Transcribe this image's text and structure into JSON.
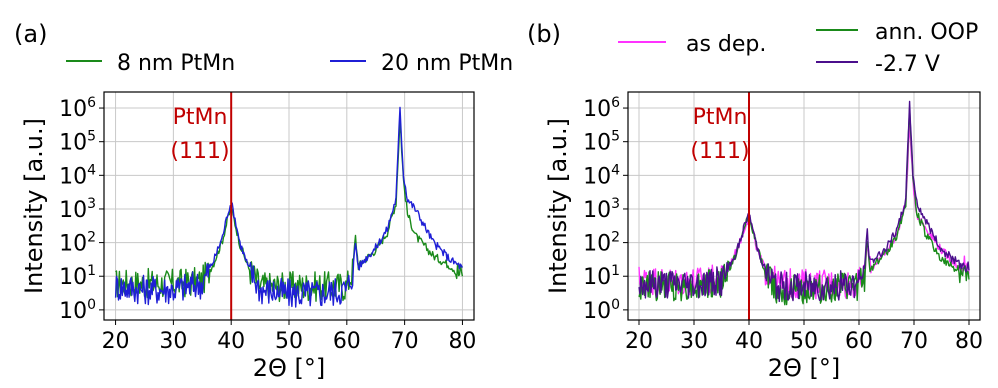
{
  "chart_data": [
    {
      "panel_label": "(a)",
      "type": "line",
      "xlabel": "2Θ [°]",
      "ylabel": "Intensity [a.u.]",
      "xlim": [
        18,
        82
      ],
      "ylim": [
        0.5,
        3000000
      ],
      "y_scale": "log",
      "grid": true,
      "legend": "top, above plot",
      "x_ticks": [
        "20",
        "30",
        "40",
        "50",
        "60",
        "70",
        "80"
      ],
      "y_ticks": [
        {
          "base": "10",
          "exp": "0",
          "value": 1
        },
        {
          "base": "10",
          "exp": "1",
          "value": 10
        },
        {
          "base": "10",
          "exp": "2",
          "value": 100
        },
        {
          "base": "10",
          "exp": "3",
          "value": 1000
        },
        {
          "base": "10",
          "exp": "4",
          "value": 10000
        },
        {
          "base": "10",
          "exp": "5",
          "value": 100000
        },
        {
          "base": "10",
          "exp": "6",
          "value": 1000000
        }
      ],
      "annotation": {
        "line1": "PtMn",
        "line2": "(111)",
        "x": 40,
        "color": "#c00000"
      },
      "series": [
        {
          "name": "8 nm PtMn",
          "color": "#1a8a1a",
          "x": [
            20,
            25,
            30,
            35,
            37,
            38.5,
            39.5,
            40,
            40.5,
            41.5,
            43,
            45,
            50,
            55,
            60,
            61,
            61.5,
            62,
            63,
            65,
            67,
            68.5,
            69.2,
            69.8,
            70.5,
            72,
            75,
            78,
            80
          ],
          "y": [
            6,
            6,
            6,
            7,
            25,
            120,
            600,
            1000,
            500,
            90,
            18,
            5,
            5,
            5,
            5,
            15,
            150,
            20,
            30,
            60,
            200,
            1500,
            500000,
            7000,
            700,
            150,
            40,
            20,
            10
          ]
        },
        {
          "name": "20 nm PtMn",
          "color": "#1f1fd6",
          "x": [
            20,
            25,
            30,
            35,
            37,
            38.5,
            39.5,
            40,
            40.5,
            41.5,
            43,
            45,
            50,
            55,
            60,
            61,
            61.5,
            62,
            63,
            65,
            67,
            68.5,
            69.2,
            69.8,
            70.5,
            72,
            75,
            78,
            80
          ],
          "y": [
            5,
            4,
            4,
            6,
            30,
            150,
            900,
            1500,
            700,
            100,
            18,
            4,
            3,
            3,
            4,
            12,
            100,
            18,
            30,
            70,
            250,
            2000,
            1000000,
            10000,
            2000,
            900,
            100,
            30,
            18
          ]
        }
      ]
    },
    {
      "panel_label": "(b)",
      "type": "line",
      "xlabel": "2Θ [°]",
      "ylabel": "Intensity [a.u.]",
      "xlim": [
        18,
        82
      ],
      "ylim": [
        0.5,
        3000000
      ],
      "y_scale": "log",
      "grid": true,
      "legend": "top, above plot",
      "x_ticks": [
        "20",
        "30",
        "40",
        "50",
        "60",
        "70",
        "80"
      ],
      "y_ticks": [
        {
          "base": "10",
          "exp": "0",
          "value": 1
        },
        {
          "base": "10",
          "exp": "1",
          "value": 10
        },
        {
          "base": "10",
          "exp": "2",
          "value": 100
        },
        {
          "base": "10",
          "exp": "3",
          "value": 1000
        },
        {
          "base": "10",
          "exp": "4",
          "value": 10000
        },
        {
          "base": "10",
          "exp": "5",
          "value": 100000
        },
        {
          "base": "10",
          "exp": "6",
          "value": 1000000
        }
      ],
      "annotation": {
        "line1": "PtMn",
        "line2": "(111)",
        "x": 40,
        "color": "#c00000"
      },
      "series": [
        {
          "name": "as dep.",
          "color": "#ff33ff",
          "x": [
            20,
            25,
            30,
            35,
            37,
            38.5,
            39.5,
            40,
            40.5,
            41.5,
            43,
            45,
            50,
            55,
            60,
            61,
            61.5,
            62,
            63,
            65,
            67,
            68.5,
            69.2,
            69.8,
            70.5,
            72,
            75,
            78,
            80
          ],
          "y": [
            8,
            7,
            7,
            8,
            30,
            120,
            400,
            550,
            300,
            60,
            15,
            6,
            6,
            6,
            6,
            10,
            90,
            15,
            25,
            50,
            200,
            1500,
            300000,
            6000,
            700,
            300,
            60,
            20,
            12
          ]
        },
        {
          "name": "ann. OOP",
          "color": "#1a8a1a",
          "x": [
            20,
            25,
            30,
            35,
            37,
            38.5,
            39.5,
            40,
            40.5,
            41.5,
            43,
            45,
            50,
            55,
            60,
            61,
            61.5,
            62,
            63,
            65,
            67,
            68.5,
            69.2,
            69.8,
            70.5,
            72,
            75,
            78,
            80
          ],
          "y": [
            5,
            5,
            5,
            6,
            25,
            110,
            450,
            600,
            320,
            65,
            14,
            4,
            4,
            4,
            5,
            10,
            120,
            15,
            25,
            50,
            180,
            1500,
            1000000,
            8000,
            800,
            200,
            30,
            15,
            8
          ]
        },
        {
          "name": "-2.7 V",
          "color": "#4b0f8c",
          "x": [
            20,
            25,
            30,
            35,
            37,
            38.5,
            39.5,
            40,
            40.5,
            41.5,
            43,
            45,
            50,
            55,
            60,
            61,
            61.5,
            62,
            63,
            65,
            67,
            68.5,
            69.2,
            69.8,
            70.5,
            72,
            75,
            78,
            80
          ],
          "y": [
            6,
            6,
            6,
            7,
            28,
            120,
            500,
            650,
            350,
            70,
            15,
            5,
            5,
            5,
            6,
            20,
            200,
            25,
            35,
            70,
            250,
            2000,
            1500000,
            12000,
            1500,
            500,
            60,
            25,
            15
          ]
        }
      ]
    }
  ]
}
